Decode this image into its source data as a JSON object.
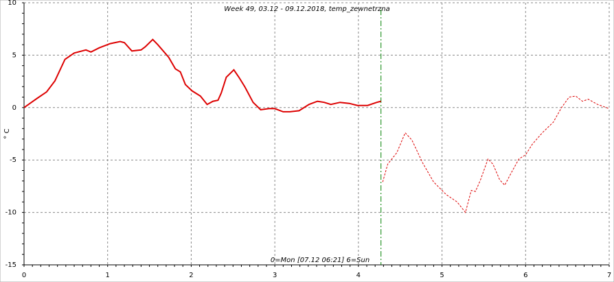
{
  "chart_data": {
    "type": "line",
    "title": "Week 49, 03.12 - 09.12.2018, temp_zewnetrzna",
    "x_label": "0=Mon [07.12 06:21] 6=Sun",
    "y_label": "° C",
    "xlim": [
      0,
      7
    ],
    "xticks": [
      0,
      1,
      2,
      3,
      4,
      5,
      6,
      7
    ],
    "ylim": [
      -15,
      10
    ],
    "yticks": [
      -15,
      -10,
      -5,
      0,
      5,
      10
    ],
    "grid": true,
    "marker_x": 4.27,
    "marker_color": "#008000",
    "series": [
      {
        "color": "#dd0000",
        "style": "solid",
        "x": [
          0,
          0.08,
          0.16,
          0.27,
          0.37,
          0.49,
          0.6,
          0.74,
          0.8,
          0.9,
          1.03,
          1.15,
          1.2,
          1.29,
          1.4,
          1.45,
          1.54,
          1.6,
          1.73,
          1.81,
          1.87,
          1.93,
          2.01,
          2.11,
          2.19,
          2.26,
          2.32,
          2.36,
          2.42,
          2.51,
          2.57,
          2.64,
          2.74,
          2.83,
          2.93,
          3.0,
          3.1,
          3.18,
          3.29,
          3.41,
          3.51,
          3.59,
          3.67,
          3.78,
          3.89,
          3.99,
          4.11,
          4.22,
          4.27
        ],
        "values": [
          0,
          0.45,
          0.9,
          1.5,
          2.55,
          4.6,
          5.2,
          5.5,
          5.3,
          5.7,
          6.1,
          6.3,
          6.2,
          5.4,
          5.5,
          5.8,
          6.5,
          6.0,
          4.8,
          3.7,
          3.4,
          2.2,
          1.6,
          1.1,
          0.3,
          0.6,
          0.7,
          1.4,
          2.9,
          3.6,
          2.9,
          2.0,
          0.5,
          -0.2,
          -0.1,
          -0.1,
          -0.4,
          -0.4,
          -0.3,
          0.3,
          0.6,
          0.5,
          0.3,
          0.5,
          0.4,
          0.2,
          0.2,
          0.5,
          0.6
        ]
      },
      {
        "color": "#dd0000",
        "style": "dashed",
        "x": [
          4.29,
          4.35,
          4.46,
          4.56,
          4.64,
          4.77,
          4.9,
          5.05,
          5.18,
          5.28,
          5.35,
          5.4,
          5.46,
          5.55,
          5.61,
          5.69,
          5.75,
          5.83,
          5.92,
          6.0,
          6.08,
          6.2,
          6.33,
          6.43,
          6.52,
          6.6,
          6.68,
          6.75,
          6.86,
          7.0
        ],
        "values": [
          -7.1,
          -5.4,
          -4.3,
          -2.4,
          -3.1,
          -5.3,
          -7.1,
          -8.3,
          -9.0,
          -10.0,
          -7.9,
          -8.0,
          -6.9,
          -4.9,
          -5.4,
          -6.9,
          -7.4,
          -6.2,
          -4.9,
          -4.5,
          -3.5,
          -2.4,
          -1.4,
          0.0,
          1.0,
          1.1,
          0.6,
          0.8,
          0.3,
          -0.1
        ]
      }
    ]
  }
}
